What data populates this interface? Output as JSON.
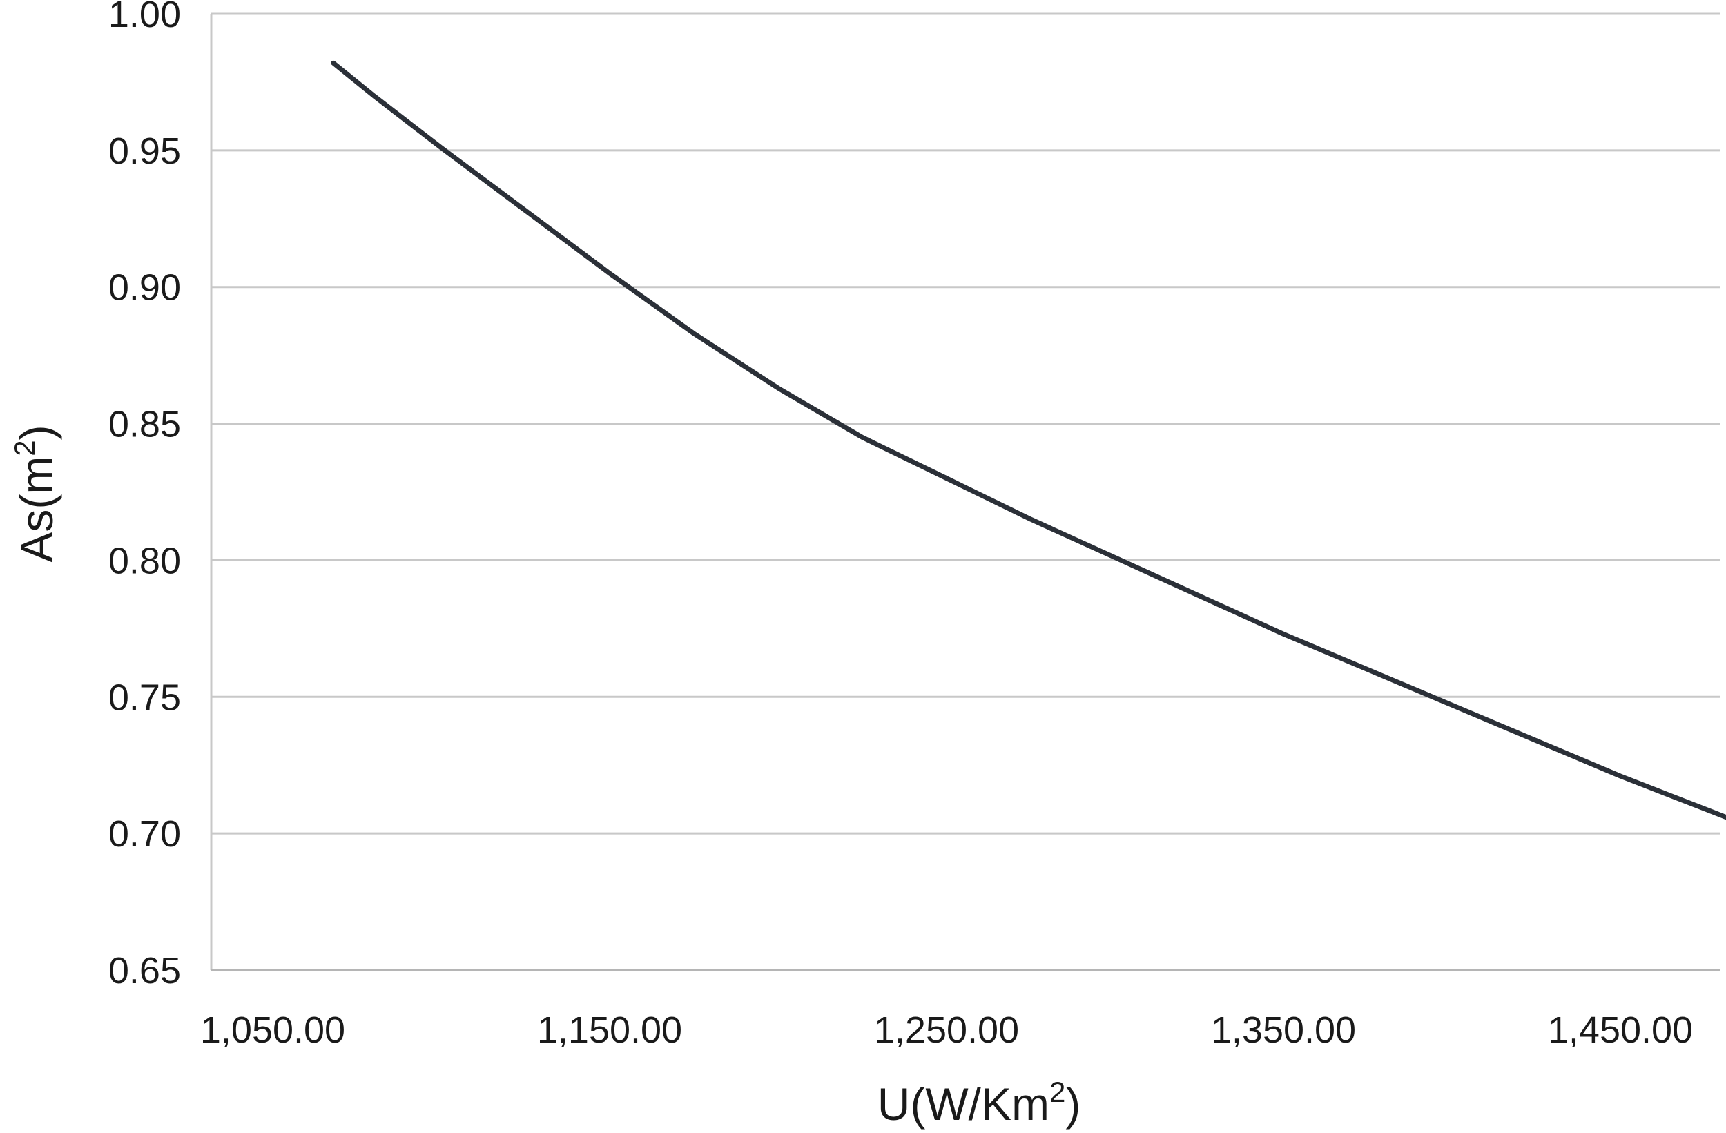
{
  "chart_data": {
    "type": "line",
    "title": "",
    "xlabel": {
      "base": "U(W/Km",
      "sup": "2",
      "close": ")"
    },
    "ylabel": {
      "base": "As(m",
      "sup": "2",
      "close": ")"
    },
    "xlim": [
      1050,
      1500
    ],
    "ylim": [
      0.65,
      1.0
    ],
    "xticks": [
      1050,
      1150,
      1250,
      1350,
      1450
    ],
    "xtick_labels": [
      "1,050.00",
      "1,150.00",
      "1,250.00",
      "1,350.00",
      "1,450.00"
    ],
    "yticks": [
      0.65,
      0.7,
      0.75,
      0.8,
      0.85,
      0.9,
      0.95,
      1.0
    ],
    "ytick_labels": [
      "0.65",
      "0.70",
      "0.75",
      "0.80",
      "0.85",
      "0.90",
      "0.95",
      "1.00"
    ],
    "grid": "horizontal",
    "line_color": "#2b3038",
    "grid_color": "#c8c8c8",
    "series": [
      {
        "x": [
          1068,
          1080,
          1100,
          1125,
          1150,
          1175,
          1200,
          1225,
          1250,
          1275,
          1300,
          1325,
          1350,
          1375,
          1400,
          1425,
          1450,
          1475,
          1500
        ],
        "y": [
          0.982,
          0.97,
          0.951,
          0.928,
          0.905,
          0.883,
          0.863,
          0.845,
          0.83,
          0.815,
          0.801,
          0.787,
          0.773,
          0.76,
          0.747,
          0.734,
          0.721,
          0.709,
          0.697
        ]
      }
    ]
  }
}
